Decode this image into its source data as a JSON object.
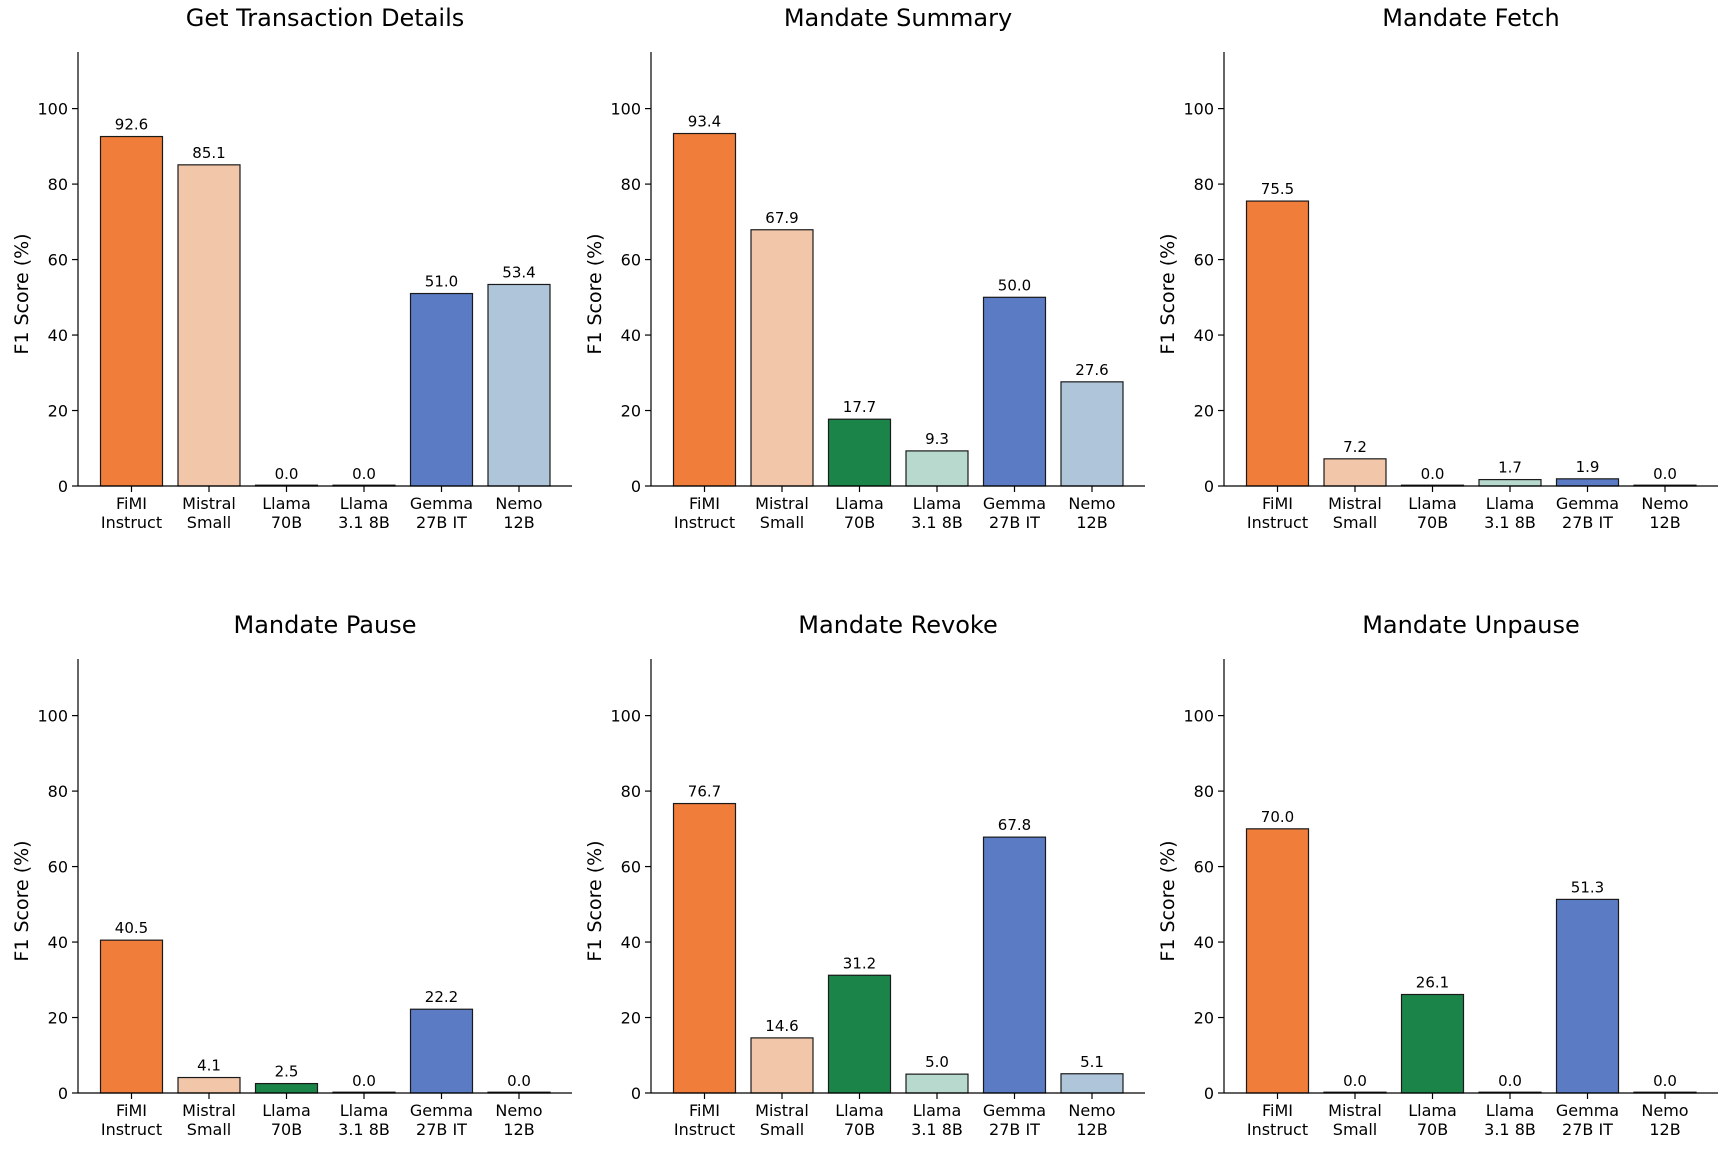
{
  "colors": {
    "FiMI Instruct": "#F07D3A",
    "Mistral Small": "#F2C6A8",
    "Llama 70B": "#1A8449",
    "Llama 3.1 8B": "#B7D9CE",
    "Gemma 27B IT": "#5B7BC5",
    "Nemo 12B": "#AFC5DA"
  },
  "chart_data": [
    {
      "type": "bar",
      "title": "Get Transaction Details",
      "ylabel": "F1 Score (%)",
      "categories": [
        [
          "FiMI",
          "Instruct"
        ],
        [
          "Mistral",
          "Small"
        ],
        [
          "Llama",
          "70B"
        ],
        [
          "Llama",
          "3.1 8B"
        ],
        [
          "Gemma",
          "27B IT"
        ],
        [
          "Nemo",
          "12B"
        ]
      ],
      "values": [
        92.6,
        85.1,
        0.0,
        0.0,
        51.0,
        53.4
      ],
      "labels": [
        "92.6",
        "85.1",
        "0.0",
        "0.0",
        "51.0",
        "53.4"
      ],
      "yticks": [
        0,
        20,
        40,
        60,
        80,
        100
      ],
      "ylim": [
        0,
        115
      ]
    },
    {
      "type": "bar",
      "title": "Mandate Summary",
      "ylabel": "F1 Score (%)",
      "categories": [
        [
          "FiMI",
          "Instruct"
        ],
        [
          "Mistral",
          "Small"
        ],
        [
          "Llama",
          "70B"
        ],
        [
          "Llama",
          "3.1 8B"
        ],
        [
          "Gemma",
          "27B IT"
        ],
        [
          "Nemo",
          "12B"
        ]
      ],
      "values": [
        93.4,
        67.9,
        17.7,
        9.3,
        50.0,
        27.6
      ],
      "labels": [
        "93.4",
        "67.9",
        "17.7",
        "9.3",
        "50.0",
        "27.6"
      ],
      "yticks": [
        0,
        20,
        40,
        60,
        80,
        100
      ],
      "ylim": [
        0,
        115
      ]
    },
    {
      "type": "bar",
      "title": "Mandate Fetch",
      "ylabel": "F1 Score (%)",
      "categories": [
        [
          "FiMI",
          "Instruct"
        ],
        [
          "Mistral",
          "Small"
        ],
        [
          "Llama",
          "70B"
        ],
        [
          "Llama",
          "3.1 8B"
        ],
        [
          "Gemma",
          "27B IT"
        ],
        [
          "Nemo",
          "12B"
        ]
      ],
      "values": [
        75.5,
        7.2,
        0.0,
        1.7,
        1.9,
        0.0
      ],
      "labels": [
        "75.5",
        "7.2",
        "0.0",
        "1.7",
        "1.9",
        "0.0"
      ],
      "yticks": [
        0,
        20,
        40,
        60,
        80,
        100
      ],
      "ylim": [
        0,
        115
      ]
    },
    {
      "type": "bar",
      "title": "Mandate Pause",
      "ylabel": "F1 Score (%)",
      "categories": [
        [
          "FiMI",
          "Instruct"
        ],
        [
          "Mistral",
          "Small"
        ],
        [
          "Llama",
          "70B"
        ],
        [
          "Llama",
          "3.1 8B"
        ],
        [
          "Gemma",
          "27B IT"
        ],
        [
          "Nemo",
          "12B"
        ]
      ],
      "values": [
        40.5,
        4.1,
        2.5,
        0.0,
        22.2,
        0.0
      ],
      "labels": [
        "40.5",
        "4.1",
        "2.5",
        "0.0",
        "22.2",
        "0.0"
      ],
      "yticks": [
        0,
        20,
        40,
        60,
        80,
        100
      ],
      "ylim": [
        0,
        115
      ]
    },
    {
      "type": "bar",
      "title": "Mandate Revoke",
      "ylabel": "F1 Score (%)",
      "categories": [
        [
          "FiMI",
          "Instruct"
        ],
        [
          "Mistral",
          "Small"
        ],
        [
          "Llama",
          "70B"
        ],
        [
          "Llama",
          "3.1 8B"
        ],
        [
          "Gemma",
          "27B IT"
        ],
        [
          "Nemo",
          "12B"
        ]
      ],
      "values": [
        76.7,
        14.6,
        31.2,
        5.0,
        67.8,
        5.1
      ],
      "labels": [
        "76.7",
        "14.6",
        "31.2",
        "5.0",
        "67.8",
        "5.1"
      ],
      "yticks": [
        0,
        20,
        40,
        60,
        80,
        100
      ],
      "ylim": [
        0,
        115
      ]
    },
    {
      "type": "bar",
      "title": "Mandate Unpause",
      "ylabel": "F1 Score (%)",
      "categories": [
        [
          "FiMI",
          "Instruct"
        ],
        [
          "Mistral",
          "Small"
        ],
        [
          "Llama",
          "70B"
        ],
        [
          "Llama",
          "3.1 8B"
        ],
        [
          "Gemma",
          "27B IT"
        ],
        [
          "Nemo",
          "12B"
        ]
      ],
      "values": [
        70.0,
        0.0,
        26.1,
        0.0,
        51.3,
        0.0
      ],
      "labels": [
        "70.0",
        "0.0",
        "26.1",
        "0.0",
        "51.3",
        "0.0"
      ],
      "yticks": [
        0,
        20,
        40,
        60,
        80,
        100
      ],
      "ylim": [
        0,
        115
      ]
    }
  ]
}
